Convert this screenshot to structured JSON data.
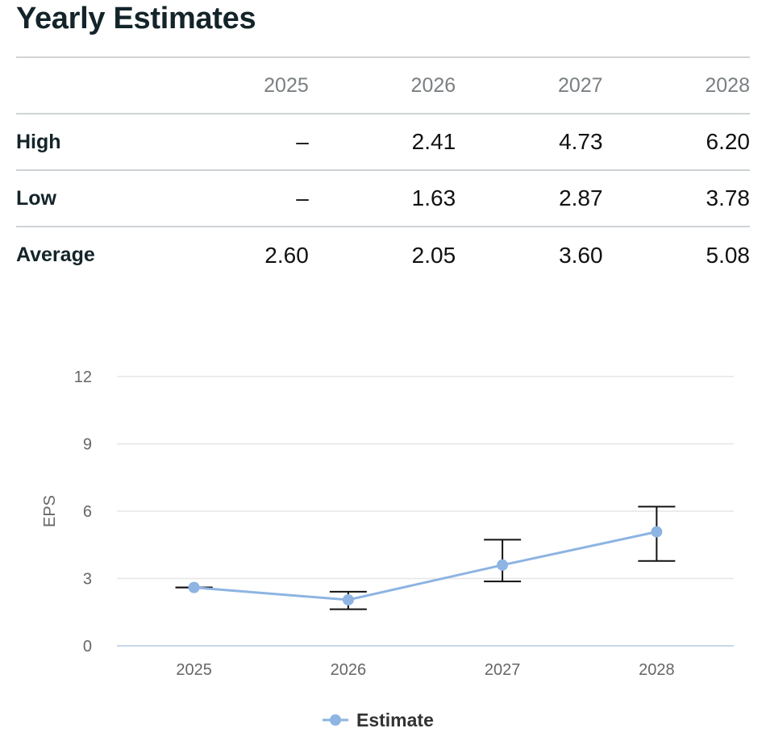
{
  "title": "Yearly Estimates",
  "table": {
    "columns": [
      "",
      "2025",
      "2026",
      "2027",
      "2028"
    ],
    "rows": [
      {
        "label": "High",
        "values": [
          "–",
          "2.41",
          "4.73",
          "6.20"
        ]
      },
      {
        "label": "Low",
        "values": [
          "–",
          "1.63",
          "2.87",
          "3.78"
        ]
      },
      {
        "label": "Average",
        "values": [
          "2.60",
          "2.05",
          "3.60",
          "5.08"
        ]
      }
    ]
  },
  "chart_data": {
    "type": "line",
    "categories": [
      "2025",
      "2026",
      "2027",
      "2028"
    ],
    "series": [
      {
        "name": "Estimate",
        "values": [
          2.6,
          2.05,
          3.6,
          5.08
        ],
        "high": [
          2.6,
          2.41,
          4.73,
          6.2
        ],
        "low": [
          2.6,
          1.63,
          2.87,
          3.78
        ]
      }
    ],
    "ylabel": "EPS",
    "xlabel": "",
    "ylim": [
      0,
      12
    ],
    "yticks": [
      "0",
      "3",
      "6",
      "9",
      "12"
    ],
    "grid": true,
    "legend": "bottom-center",
    "colors": {
      "line": "#8db4e2",
      "error_bar": "#111111",
      "grid": "#e6e6e6",
      "axis": "#c8d7ea",
      "tick_text": "#666666"
    }
  }
}
